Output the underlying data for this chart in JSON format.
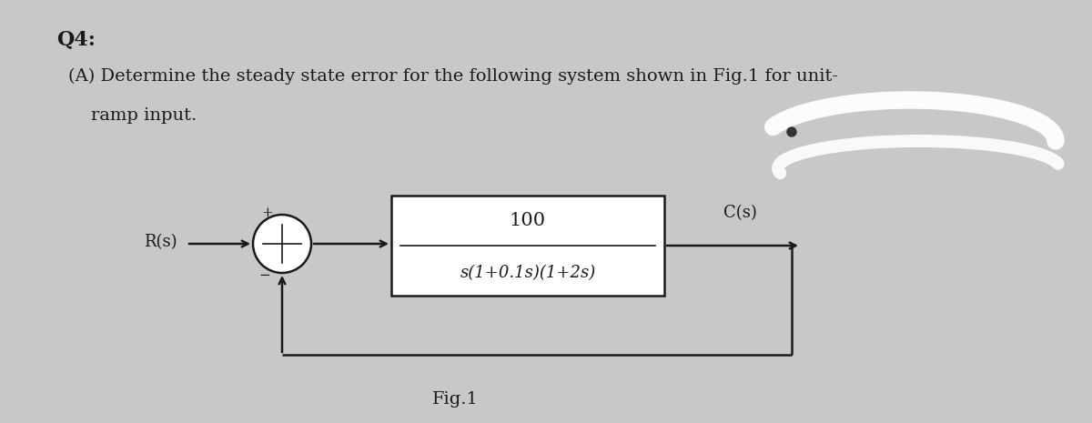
{
  "bg_color": "#c8c8c8",
  "title_q4": "Q4:",
  "line1": "(A) Determine the steady state error for the following system shown in Fig.1 for unit-",
  "line2": "    ramp input.",
  "fig_label": "Fig.1",
  "box_numerator": "100",
  "box_denominator": "s(1+0.1s)(1+2s)",
  "Rs_label": "R(s)",
  "Cs_label": "C(s)",
  "text_color": "#1a1a1a",
  "line_color": "#1a1a1a",
  "bg_color_actual": "#c9c9c9"
}
